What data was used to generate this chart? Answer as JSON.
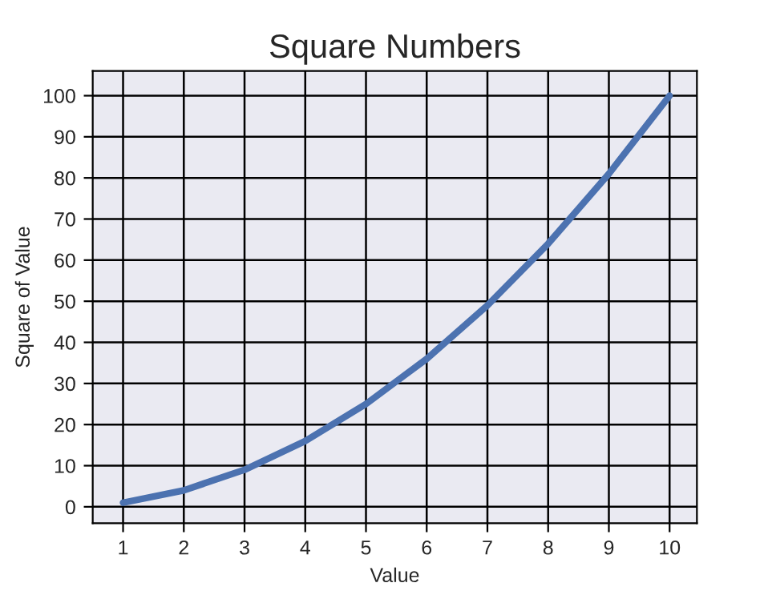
{
  "chart_data": {
    "type": "line",
    "title": "Square Numbers",
    "xlabel": "Value",
    "ylabel": "Square of Value",
    "x": [
      1,
      2,
      3,
      4,
      5,
      6,
      7,
      8,
      9,
      10
    ],
    "series": [
      {
        "color": "#4c72b0",
        "values": [
          1,
          4,
          9,
          16,
          25,
          36,
          49,
          64,
          81,
          100
        ]
      }
    ],
    "xlim": [
      0.5,
      10.45
    ],
    "xticks": [
      1,
      2,
      3,
      4,
      5,
      6,
      7,
      8,
      9,
      10
    ],
    "ylim": [
      -4,
      106
    ],
    "yticks": [
      0,
      10,
      20,
      30,
      40,
      50,
      60,
      70,
      80,
      90,
      100
    ],
    "grid": true,
    "marker": "none",
    "line_style": "solid"
  }
}
